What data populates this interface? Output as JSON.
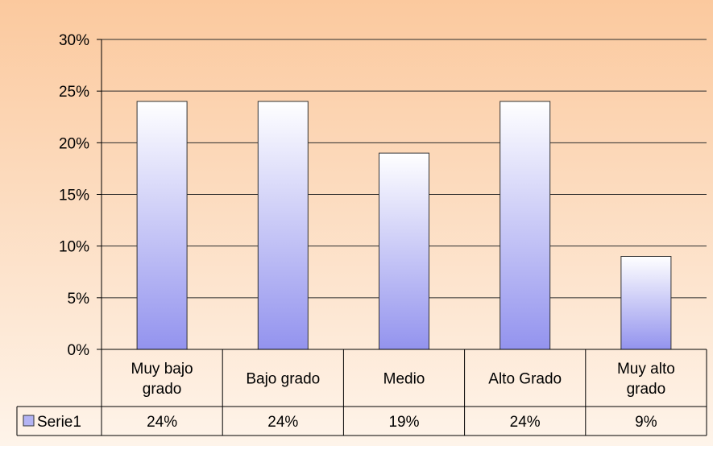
{
  "chart_data": {
    "type": "bar",
    "categories": [
      [
        "Muy bajo",
        "grado"
      ],
      [
        "Bajo grado"
      ],
      [
        "Medio"
      ],
      [
        "Alto Grado"
      ],
      [
        "Muy alto",
        "grado"
      ]
    ],
    "series": [
      {
        "name": "Serie1",
        "values": [
          24,
          24,
          19,
          24,
          9
        ]
      }
    ],
    "data_table": [
      "24%",
      "24%",
      "19%",
      "24%",
      "9%"
    ],
    "y_ticks": [
      "0%",
      "5%",
      "10%",
      "15%",
      "20%",
      "25%",
      "30%"
    ],
    "ylim": [
      0,
      30
    ],
    "unit": "%",
    "grid": true,
    "legend": "data-table-left",
    "colors": {
      "plot_bg_top": "#fbc99e",
      "plot_bg_bottom": "#fef4ea",
      "bar_top": "#ffffff",
      "bar_bottom": "#9393ee",
      "gridline": "#2a2a2a",
      "legend_key": "#b3b3f3"
    }
  }
}
